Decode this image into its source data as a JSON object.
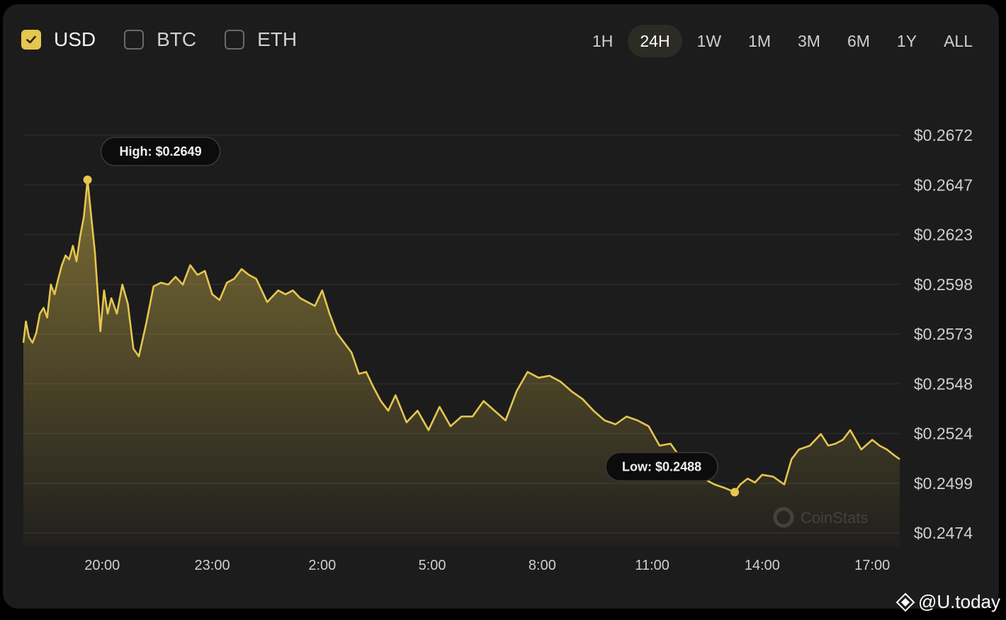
{
  "currencies": [
    {
      "label": "USD",
      "checked": true
    },
    {
      "label": "BTC",
      "checked": false
    },
    {
      "label": "ETH",
      "checked": false
    }
  ],
  "ranges": [
    "1H",
    "24H",
    "1W",
    "1M",
    "3M",
    "6M",
    "1Y",
    "ALL"
  ],
  "active_range": "24H",
  "watermark": {
    "at": "@",
    "brand": "U.today"
  },
  "colors": {
    "line": "#e5c64f",
    "background": "#1c1c1c",
    "grid": "#2e2e2e",
    "axis_text": "#cfcfcf"
  },
  "chart_data": {
    "type": "area",
    "title": "",
    "xlabel": "",
    "ylabel": "",
    "grid": true,
    "x_ticks": [
      "20:00",
      "23:00",
      "2:00",
      "5:00",
      "8:00",
      "11:00",
      "14:00",
      "17:00"
    ],
    "y_ticks": [
      "$0.2672",
      "$0.2647",
      "$0.2623",
      "$0.2598",
      "$0.2573",
      "$0.2548",
      "$0.2524",
      "$0.2499",
      "$0.2474"
    ],
    "ylim": [
      0.2467,
      0.2672
    ],
    "x_range_hours": [
      17.85,
      41.75
    ],
    "annotations": {
      "high": "High: $0.2649",
      "low": "Low: $0.2488"
    },
    "series": [
      {
        "x": [
          17.85,
          17.92,
          18.0,
          18.1,
          18.2,
          18.3,
          18.4,
          18.5,
          18.6,
          18.7,
          18.8,
          18.9,
          19.0,
          19.1,
          19.2,
          19.3,
          19.4,
          19.5,
          19.6,
          19.7,
          19.8,
          19.95,
          20.05,
          20.15,
          20.25,
          20.4,
          20.55,
          20.7,
          20.85,
          21.0,
          21.2,
          21.4,
          21.6,
          21.8,
          22.0,
          22.2,
          22.4,
          22.6,
          22.8,
          23.0,
          23.2,
          23.4,
          23.6,
          23.8,
          24.0,
          24.2,
          24.5,
          24.8,
          25.0,
          25.2,
          25.4,
          25.6,
          25.8,
          26.0,
          26.2,
          26.4,
          26.6,
          26.8,
          27.0,
          27.2,
          27.4,
          27.6,
          27.8,
          28.0,
          28.3,
          28.6,
          28.9,
          29.2,
          29.5,
          29.8,
          30.1,
          30.4,
          30.7,
          31.0,
          31.3,
          31.6,
          31.9,
          32.2,
          32.5,
          32.8,
          33.1,
          33.4,
          33.7,
          34.0,
          34.3,
          34.6,
          34.9,
          35.2,
          35.5,
          35.8,
          36.1,
          36.4,
          36.7,
          37.0,
          37.25,
          37.4,
          37.6,
          37.8,
          38.0,
          38.3,
          38.6,
          38.8,
          39.0,
          39.3,
          39.6,
          39.8,
          40.0,
          40.2,
          40.4,
          40.7,
          41.0,
          41.2,
          41.4,
          41.6,
          41.75
        ],
        "y": [
          0.2565,
          0.2576,
          0.2568,
          0.2565,
          0.257,
          0.258,
          0.2583,
          0.2578,
          0.2595,
          0.259,
          0.2598,
          0.2605,
          0.261,
          0.2608,
          0.2615,
          0.2607,
          0.262,
          0.263,
          0.2649,
          0.263,
          0.2612,
          0.2571,
          0.2592,
          0.258,
          0.2588,
          0.258,
          0.2595,
          0.2585,
          0.2562,
          0.2558,
          0.2575,
          0.2594,
          0.2596,
          0.2595,
          0.2599,
          0.2595,
          0.2605,
          0.26,
          0.2602,
          0.259,
          0.2587,
          0.2596,
          0.2598,
          0.2603,
          0.26,
          0.2598,
          0.2586,
          0.2592,
          0.259,
          0.2592,
          0.2588,
          0.2586,
          0.2584,
          0.2592,
          0.258,
          0.257,
          0.2565,
          0.256,
          0.2549,
          0.255,
          0.2542,
          0.2535,
          0.253,
          0.2538,
          0.2524,
          0.253,
          0.252,
          0.2532,
          0.2522,
          0.2527,
          0.2527,
          0.2535,
          0.253,
          0.2525,
          0.254,
          0.255,
          0.2547,
          0.2548,
          0.2545,
          0.254,
          0.2536,
          0.253,
          0.2525,
          0.2523,
          0.2527,
          0.2525,
          0.2522,
          0.2512,
          0.2513,
          0.2505,
          0.2495,
          0.2495,
          0.2492,
          0.249,
          0.2488,
          0.2492,
          0.2495,
          0.2493,
          0.2497,
          0.2496,
          0.2492,
          0.2505,
          0.251,
          0.2512,
          0.2518,
          0.2512,
          0.2513,
          0.2515,
          0.252,
          0.251,
          0.2515,
          0.2512,
          0.251,
          0.2507,
          0.2505
        ]
      }
    ]
  }
}
